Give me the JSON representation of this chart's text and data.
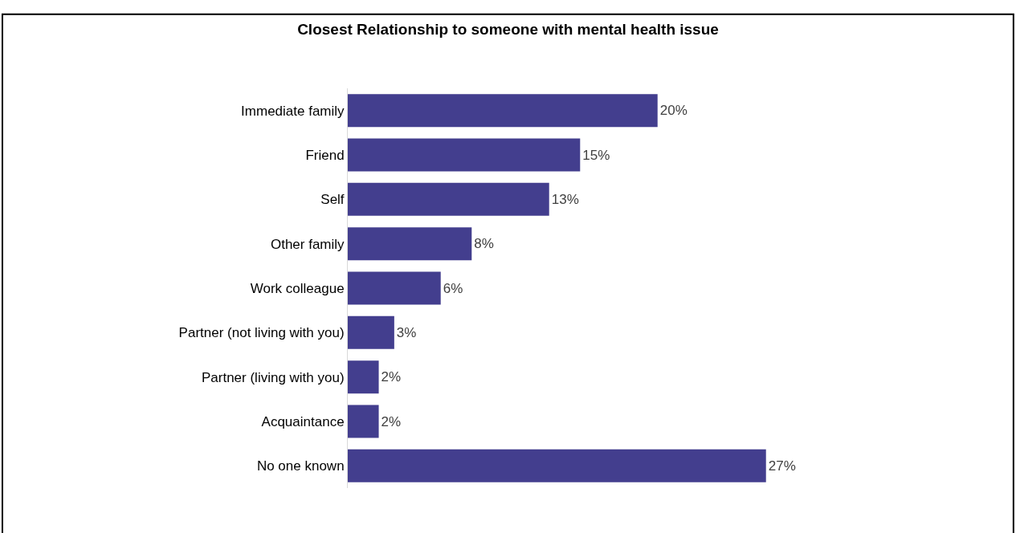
{
  "chart_data": {
    "type": "bar",
    "orientation": "horizontal",
    "title": "Closest Relationship to someone with mental health issue",
    "categories": [
      "Immediate family",
      "Friend",
      "Self",
      "Other family",
      "Work colleague",
      "Partner (not living with you)",
      "Partner (living with you)",
      "Acquaintance",
      "No one known"
    ],
    "values": [
      20,
      15,
      13,
      8,
      6,
      3,
      2,
      2,
      27
    ],
    "value_labels": [
      "20%",
      "15%",
      "13%",
      "8%",
      "6%",
      "3%",
      "2%",
      "2%",
      "27%"
    ],
    "color": "#433e8e"
  }
}
